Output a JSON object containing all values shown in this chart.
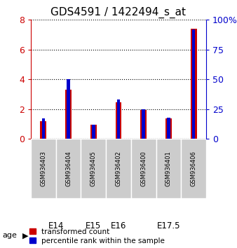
{
  "title": "GDS4591 / 1422494_s_at",
  "samples": [
    "GSM936403",
    "GSM936404",
    "GSM936405",
    "GSM936402",
    "GSM936400",
    "GSM936401",
    "GSM936406"
  ],
  "transformed_count": [
    1.2,
    3.3,
    0.95,
    2.45,
    1.95,
    1.4,
    7.4
  ],
  "percentile_rank": [
    17,
    50,
    12,
    33,
    25,
    18,
    92
  ],
  "age_groups": [
    {
      "label": "E14",
      "indices": [
        0,
        1
      ],
      "color": "#ccffcc"
    },
    {
      "label": "E15",
      "indices": [
        2
      ],
      "color": "#ccffcc"
    },
    {
      "label": "E16",
      "indices": [
        3
      ],
      "color": "#ccffcc"
    },
    {
      "label": "E17.5",
      "indices": [
        4,
        5,
        6
      ],
      "color": "#55dd55"
    }
  ],
  "bar_color_red": "#cc0000",
  "bar_color_blue": "#0000cc",
  "left_ylim": [
    0,
    8
  ],
  "right_ylim": [
    0,
    100
  ],
  "left_yticks": [
    0,
    2,
    4,
    6,
    8
  ],
  "right_yticks": [
    0,
    25,
    50,
    75,
    100
  ],
  "left_yticklabels": [
    "0",
    "2",
    "4",
    "6",
    "8"
  ],
  "right_yticklabels": [
    "0",
    "25",
    "50",
    "75",
    "100%"
  ],
  "sample_bg": "#cccccc",
  "legend_items": [
    "transformed count",
    "percentile rank within the sample"
  ],
  "age_label": "age",
  "left_tick_color": "#cc0000",
  "right_tick_color": "#0000cc"
}
